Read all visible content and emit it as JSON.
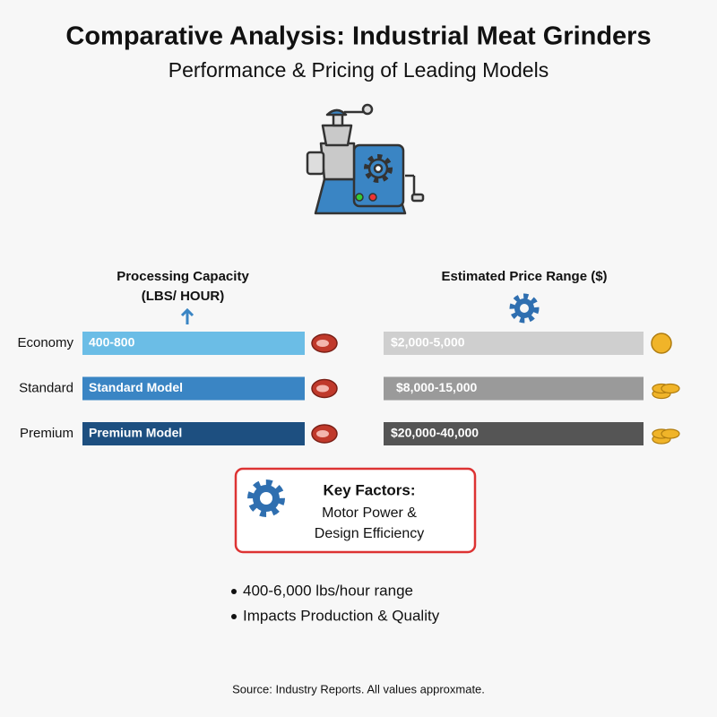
{
  "header": {
    "title": "Comparative Analysis: Industrial Meat Grinders",
    "subtitle": "Performance & Pricing of Leading Models"
  },
  "columns": {
    "capacity": {
      "title": "Processing Capacity",
      "unit": "(LBS/ HOUR)"
    },
    "price": {
      "title": "Estimated Price Range ($)"
    }
  },
  "rows": [
    {
      "label": "Economy",
      "capacity": "400-800",
      "price": "$2,000-5,000"
    },
    {
      "label": "Standard",
      "capacity": "Standard Model",
      "price": "$8,000-15,000"
    },
    {
      "label": "Premium",
      "capacity": "Premium Model",
      "price": "$20,000-40,000"
    }
  ],
  "key_factors": {
    "title": "Key Factors:",
    "lines": [
      "Motor Power &",
      "Design Efficiency"
    ]
  },
  "bullets": [
    "400-6,000 lbs/hour range",
    "Impacts Production & Quality"
  ],
  "footer": {
    "source": "Source: Industry Reports. All values approxmate."
  }
}
